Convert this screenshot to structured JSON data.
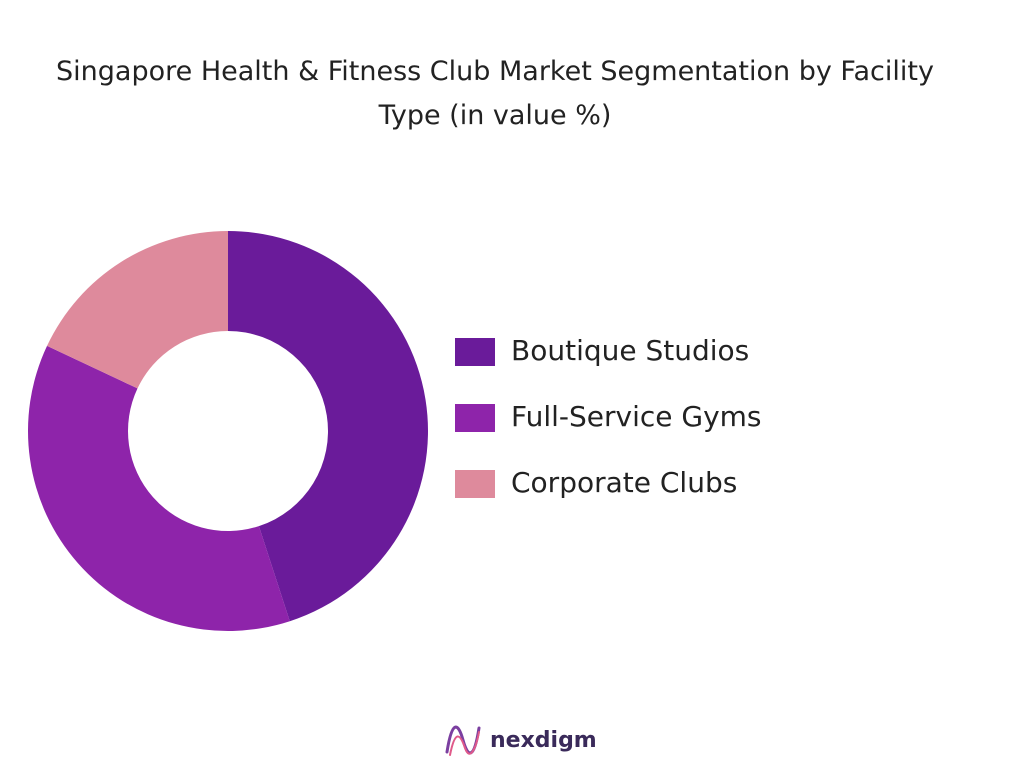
{
  "chart_data": {
    "type": "pie",
    "title": "Singapore Health & Fitness Club Market Segmentation by Facility Type (in value %)",
    "categories": [
      "Boutique Studios",
      "Full-Service Gyms",
      "Corporate Clubs"
    ],
    "values": [
      45,
      37,
      18
    ],
    "colors": [
      "#6a1b9a",
      "#8e24aa",
      "#de8a9c"
    ],
    "donut": true,
    "legend": "right"
  },
  "brand": "nexdigm"
}
